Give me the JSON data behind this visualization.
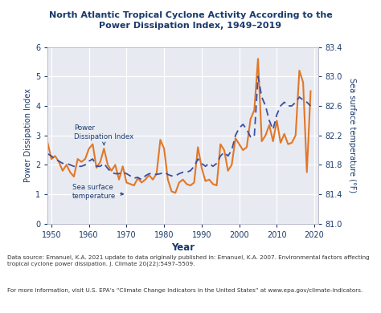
{
  "title": "North Atlantic Tropical Cyclone Activity According to the\nPower Dissipation Index, 1949–2019",
  "title_color": "#1a3a6b",
  "xlabel": "Year",
  "ylabel_left": "Power Dissipation Index",
  "ylabel_right": "Sea surface temperature (°F)",
  "plot_bg_color": "#e8eaf2",
  "fig_bg_color": "#ffffff",
  "xlim": [
    1949,
    2021
  ],
  "ylim_left": [
    0,
    6
  ],
  "ylim_right": [
    81.0,
    83.4
  ],
  "xticks": [
    1950,
    1960,
    1970,
    1980,
    1990,
    2000,
    2010,
    2020
  ],
  "yticks_left": [
    0,
    1,
    2,
    3,
    4,
    5,
    6
  ],
  "yticks_right": [
    81.0,
    81.4,
    81.8,
    82.2,
    82.6,
    83.0,
    83.4
  ],
  "grid_color": "#ffffff",
  "pdi_color": "#e07828",
  "sst_color": "#3a4fa0",
  "text_color": "#1a3a6b",
  "footer_color": "#333333",
  "footer_text1": "Data source: Emanuel, K.A. 2021 update to data originally published in: Emanuel, K.A. 2007. Environmental factors affecting\ntropical cyclone power dissipation. J. Climate 20(22):5497–5509.",
  "footer_text2": "For more information, visit U.S. EPA’s “Climate Change Indicators in the United States” at www.epa.gov/climate-indicators.",
  "years": [
    1949,
    1950,
    1951,
    1952,
    1953,
    1954,
    1955,
    1956,
    1957,
    1958,
    1959,
    1960,
    1961,
    1962,
    1963,
    1964,
    1965,
    1966,
    1967,
    1968,
    1969,
    1970,
    1971,
    1972,
    1973,
    1974,
    1975,
    1976,
    1977,
    1978,
    1979,
    1980,
    1981,
    1982,
    1983,
    1984,
    1985,
    1986,
    1987,
    1988,
    1989,
    1990,
    1991,
    1992,
    1993,
    1994,
    1995,
    1996,
    1997,
    1998,
    1999,
    2000,
    2001,
    2002,
    2003,
    2004,
    2005,
    2006,
    2007,
    2008,
    2009,
    2010,
    2011,
    2012,
    2013,
    2014,
    2015,
    2016,
    2017,
    2018,
    2019
  ],
  "pdi": [
    2.75,
    2.2,
    2.3,
    2.1,
    1.8,
    2.0,
    1.75,
    1.6,
    2.2,
    2.1,
    2.2,
    2.55,
    2.7,
    1.9,
    2.1,
    2.55,
    2.0,
    1.8,
    2.0,
    1.5,
    1.95,
    1.4,
    1.35,
    1.3,
    1.55,
    1.4,
    1.5,
    1.65,
    1.5,
    1.7,
    2.85,
    2.55,
    1.5,
    1.1,
    1.05,
    1.4,
    1.5,
    1.35,
    1.3,
    1.4,
    2.6,
    1.9,
    1.45,
    1.5,
    1.35,
    1.3,
    2.7,
    2.5,
    1.8,
    2.0,
    2.9,
    2.7,
    2.5,
    2.6,
    3.55,
    3.85,
    5.6,
    2.8,
    3.0,
    3.35,
    2.8,
    3.5,
    2.75,
    3.05,
    2.7,
    2.75,
    3.0,
    5.2,
    4.8,
    1.75,
    4.5
  ],
  "sst": [
    81.95,
    81.92,
    81.88,
    81.85,
    81.82,
    81.82,
    81.8,
    81.78,
    81.78,
    81.78,
    81.8,
    81.85,
    81.88,
    81.78,
    81.78,
    81.82,
    81.75,
    81.7,
    81.68,
    81.68,
    81.7,
    81.68,
    81.65,
    81.62,
    81.63,
    81.6,
    81.65,
    81.68,
    81.68,
    81.67,
    81.68,
    81.7,
    81.67,
    81.65,
    81.65,
    81.68,
    81.7,
    81.7,
    81.72,
    81.78,
    81.88,
    81.82,
    81.78,
    81.82,
    81.78,
    81.82,
    81.92,
    81.97,
    81.92,
    82.0,
    82.2,
    82.3,
    82.35,
    82.28,
    82.18,
    82.18,
    83.0,
    82.72,
    82.6,
    82.4,
    82.28,
    82.48,
    82.6,
    82.65,
    82.6,
    82.6,
    82.65,
    82.72,
    82.68,
    82.65,
    82.6
  ]
}
